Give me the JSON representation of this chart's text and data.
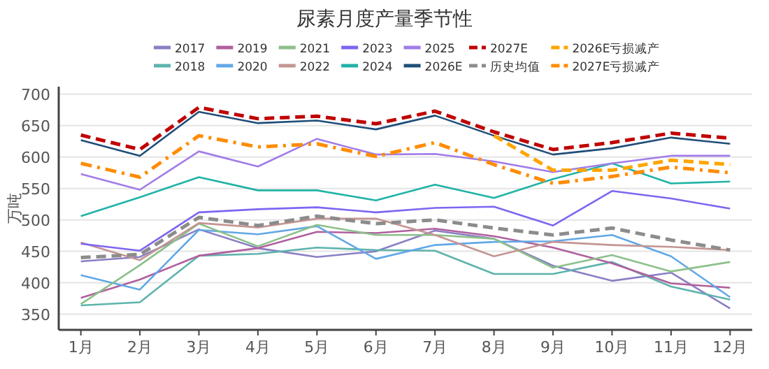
{
  "chart_data": {
    "type": "line",
    "title": "尿素月度产量季节性",
    "ylabel": "万吨",
    "categories": [
      "1月",
      "2月",
      "3月",
      "4月",
      "5月",
      "6月",
      "7月",
      "8月",
      "9月",
      "10月",
      "11月",
      "12月"
    ],
    "ylim": [
      325,
      712
    ],
    "yticks": [
      350,
      400,
      450,
      500,
      550,
      600,
      650,
      700
    ],
    "grid": "y",
    "legend": "top",
    "marker": "none",
    "series": [
      {
        "name": "2017",
        "color": "#8a7fc4",
        "values": [
          434,
          441,
          485,
          455,
          441,
          450,
          483,
          470,
          427,
          403,
          416,
          359
        ]
      },
      {
        "name": "2018",
        "color": "#5db3ad",
        "values": [
          364,
          369,
          443,
          446,
          456,
          452,
          451,
          414,
          414,
          433,
          394,
          373
        ]
      },
      {
        "name": "2019",
        "color": "#b05f9e",
        "values": [
          376,
          405,
          443,
          455,
          481,
          479,
          486,
          474,
          456,
          431,
          399,
          392
        ]
      },
      {
        "name": "2020",
        "color": "#62a8e6",
        "values": [
          412,
          389,
          484,
          477,
          490,
          438,
          460,
          465,
          466,
          476,
          442,
          377
        ]
      },
      {
        "name": "2021",
        "color": "#8cc08a",
        "values": [
          366,
          428,
          494,
          458,
          492,
          476,
          476,
          470,
          424,
          444,
          418,
          433
        ]
      },
      {
        "name": "2022",
        "color": "#c49592",
        "values": [
          464,
          436,
          495,
          488,
          502,
          502,
          476,
          442,
          465,
          460,
          457,
          452
        ]
      },
      {
        "name": "2023",
        "color": "#7f65f2",
        "values": [
          462,
          451,
          512,
          517,
          520,
          512,
          519,
          521,
          491,
          546,
          534,
          518
        ]
      },
      {
        "name": "2024",
        "color": "#1fb3a6",
        "values": [
          506,
          536,
          568,
          547,
          547,
          531,
          556,
          535,
          565,
          590,
          558,
          561
        ]
      },
      {
        "name": "2025",
        "color": "#a27ce8",
        "values": [
          573,
          548,
          609,
          585,
          629,
          604,
          605,
          593,
          576,
          590,
          602,
          602
        ]
      },
      {
        "name": "2026E",
        "color": "#1f4e79",
        "values": [
          627,
          602,
          672,
          654,
          658,
          644,
          666,
          634,
          604,
          614,
          631,
          621
        ]
      },
      {
        "name": "2027E",
        "color": "#c00000",
        "line_style": "dashed",
        "values": [
          635,
          612,
          679,
          661,
          665,
          653,
          673,
          640,
          612,
          623,
          638,
          630
        ]
      },
      {
        "name": "历史均值",
        "color": "#8c8c8c",
        "line_style": "dashed",
        "values": [
          440,
          445,
          504,
          491,
          506,
          494,
          500,
          487,
          476,
          487,
          468,
          452
        ]
      },
      {
        "name": "2026E亏损减产",
        "color": "#ffa500",
        "line_style": "dashed",
        "values": [
          null,
          null,
          null,
          null,
          null,
          null,
          null,
          634,
          579,
          579,
          595,
          588
        ]
      },
      {
        "name": "2027E亏损减产",
        "color": "#ff8c00",
        "line_style": "dashdot",
        "values": [
          590,
          568,
          634,
          616,
          621,
          601,
          623,
          588,
          558,
          569,
          584,
          575
        ]
      }
    ]
  }
}
